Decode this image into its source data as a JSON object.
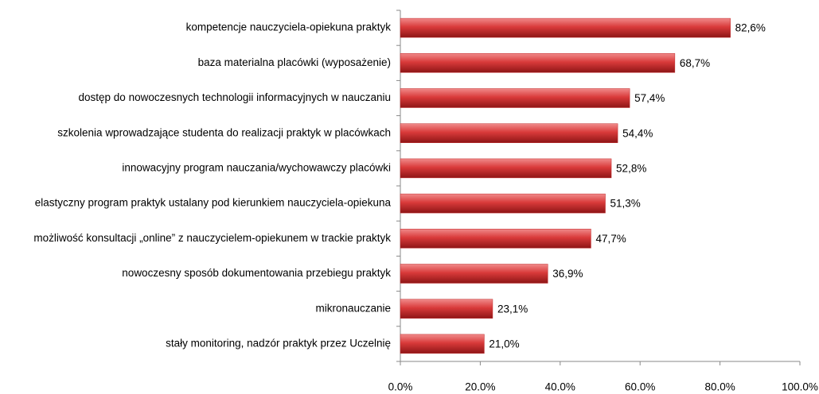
{
  "chart_data": {
    "type": "bar",
    "orientation": "horizontal",
    "categories": [
      "kompetencje nauczyciela-opiekuna praktyk",
      "baza materialna  placówki (wyposażenie)",
      "dostęp do nowoczesnych technologii informacyjnych w nauczaniu",
      "szkolenia wprowadzające studenta  do realizacji praktyk w placówkach",
      "innowacyjny program nauczania/wychowawczy  placówki",
      "elastyczny program praktyk ustalany  pod kierunkiem nauczyciela-opiekuna",
      "możliwość konsultacji „online” z nauczycielem-opiekunem w trackie praktyk",
      "nowoczesny sposób  dokumentowania  przebiegu praktyk",
      "mikronauczanie",
      "stały monitoring,  nadzór praktyk przez Uczelnię"
    ],
    "values": [
      82.6,
      68.7,
      57.4,
      54.4,
      52.8,
      51.3,
      47.7,
      36.9,
      23.1,
      21.0
    ],
    "value_labels": [
      "82,6%",
      "68,7%",
      "57,4%",
      "54,4%",
      "52,8%",
      "51,3%",
      "47,7%",
      "36,9%",
      "23,1%",
      "21,0%"
    ],
    "color": "#c0282a",
    "xlim": [
      0,
      100
    ],
    "xticks": [
      {
        "value": 0,
        "label": "0.0%"
      },
      {
        "value": 20,
        "label": "20.0%"
      },
      {
        "value": 40,
        "label": "40.0%"
      },
      {
        "value": 60,
        "label": "60.0%"
      },
      {
        "value": 80,
        "label": "80.0%"
      },
      {
        "value": 100,
        "label": "100.0%"
      }
    ]
  }
}
